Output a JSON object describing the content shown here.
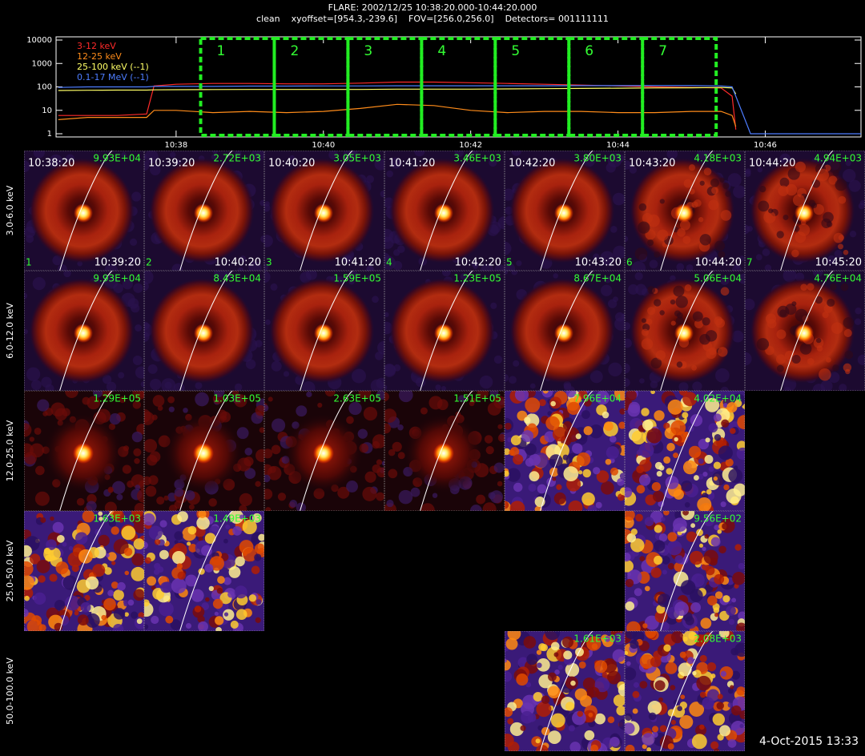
{
  "header": {
    "title": "FLARE: 2002/12/25 10:38:20.000-10:44:20.000",
    "subtitle": "clean    xyoffset=[954.3,-239.6]    FOV=[256.0,256.0]    Detectors= 001111111"
  },
  "chart_data": {
    "type": "line",
    "log_scale": true,
    "xlim": [
      36.37,
      47.3
    ],
    "xticks": [
      {
        "value": 38,
        "label": "10:38"
      },
      {
        "value": 40,
        "label": "10:40"
      },
      {
        "value": 42,
        "label": "10:42"
      },
      {
        "value": 44,
        "label": "10:44"
      },
      {
        "value": 46,
        "label": "10:46"
      }
    ],
    "ylim": [
      1,
      10000
    ],
    "yticks": [
      1,
      10,
      100,
      1000,
      10000
    ],
    "x": [
      36.4,
      36.8,
      37.2,
      37.6,
      37.7,
      38.0,
      38.5,
      39.0,
      39.5,
      40.0,
      40.5,
      41.0,
      41.5,
      42.0,
      42.5,
      43.0,
      43.5,
      44.0,
      44.5,
      45.0,
      45.4,
      45.55,
      45.6,
      45.8,
      46.5,
      47.3
    ],
    "series": [
      {
        "name": "3-12 keV",
        "color": "#ff2a2a",
        "values": [
          6,
          6,
          6,
          7,
          110,
          130,
          140,
          140,
          135,
          135,
          145,
          160,
          160,
          150,
          140,
          130,
          120,
          110,
          100,
          95,
          90,
          40,
          1.5,
          null,
          null,
          null
        ]
      },
      {
        "name": "12-25 keV",
        "color": "#ff8c1a",
        "values": [
          4,
          5,
          5,
          5,
          10,
          10,
          8,
          9,
          8,
          9,
          12,
          18,
          16,
          10,
          8,
          9,
          9,
          8,
          8,
          9,
          9,
          6,
          2,
          null,
          null,
          null
        ]
      },
      {
        "name": "25-100 keV (--1)",
        "color": "#ffff66",
        "values": [
          70,
          72,
          73,
          73,
          75,
          76,
          77,
          78,
          78,
          78,
          78,
          80,
          80,
          80,
          82,
          84,
          86,
          88,
          90,
          92,
          95,
          90,
          50,
          null,
          null,
          null
        ]
      },
      {
        "name": "0.1-17 MeV (--1)",
        "color": "#4d7dff",
        "values": [
          95,
          100,
          100,
          100,
          105,
          105,
          105,
          108,
          108,
          110,
          110,
          112,
          112,
          112,
          112,
          112,
          113,
          113,
          113,
          113,
          110,
          100,
          40,
          1,
          1,
          1
        ]
      }
    ],
    "intervals": [
      {
        "label": "1",
        "start": "10:38:20",
        "end": "10:39:20"
      },
      {
        "label": "2",
        "start": "10:39:20",
        "end": "10:40:20"
      },
      {
        "label": "3",
        "start": "10:40:20",
        "end": "10:41:20"
      },
      {
        "label": "4",
        "start": "10:41:20",
        "end": "10:42:20"
      },
      {
        "label": "5",
        "start": "10:42:20",
        "end": "10:43:20"
      },
      {
        "label": "6",
        "start": "10:43:20",
        "end": "10:44:20"
      },
      {
        "label": "7",
        "start": "10:44:20",
        "end": "10:45:20"
      }
    ]
  },
  "image_grid": {
    "rows": [
      {
        "label": "3.0-6.0 keV",
        "peaks": [
          "9.93E+04",
          "2.72E+03",
          "3.05E+03",
          "3.46E+03",
          "3.80E+03",
          "4.18E+03",
          "4.94E+03"
        ]
      },
      {
        "label": "6.0-12.0 keV",
        "peaks": [
          "9.93E+04",
          "8.43E+04",
          "1.59E+05",
          "1.23E+05",
          "8.67E+04",
          "5.06E+04",
          "4.76E+04"
        ]
      },
      {
        "label": "12.0-25.0 keV",
        "peaks": [
          "1.29E+05",
          "1.03E+05",
          "2.63E+05",
          "1.51E+05",
          "7.96E+04",
          "4.02E+04",
          null
        ]
      },
      {
        "label": "25.0-50.0 keV",
        "peaks": [
          "1.63E+03",
          "1.49E+03",
          null,
          null,
          null,
          "9.56E+02",
          null
        ]
      },
      {
        "label": "50.0-100.0 keV",
        "peaks": [
          null,
          null,
          null,
          null,
          "1.61E+03",
          "2.08E+03",
          null
        ]
      }
    ]
  },
  "footer": {
    "stamp": "4-Oct-2015 13:33"
  }
}
